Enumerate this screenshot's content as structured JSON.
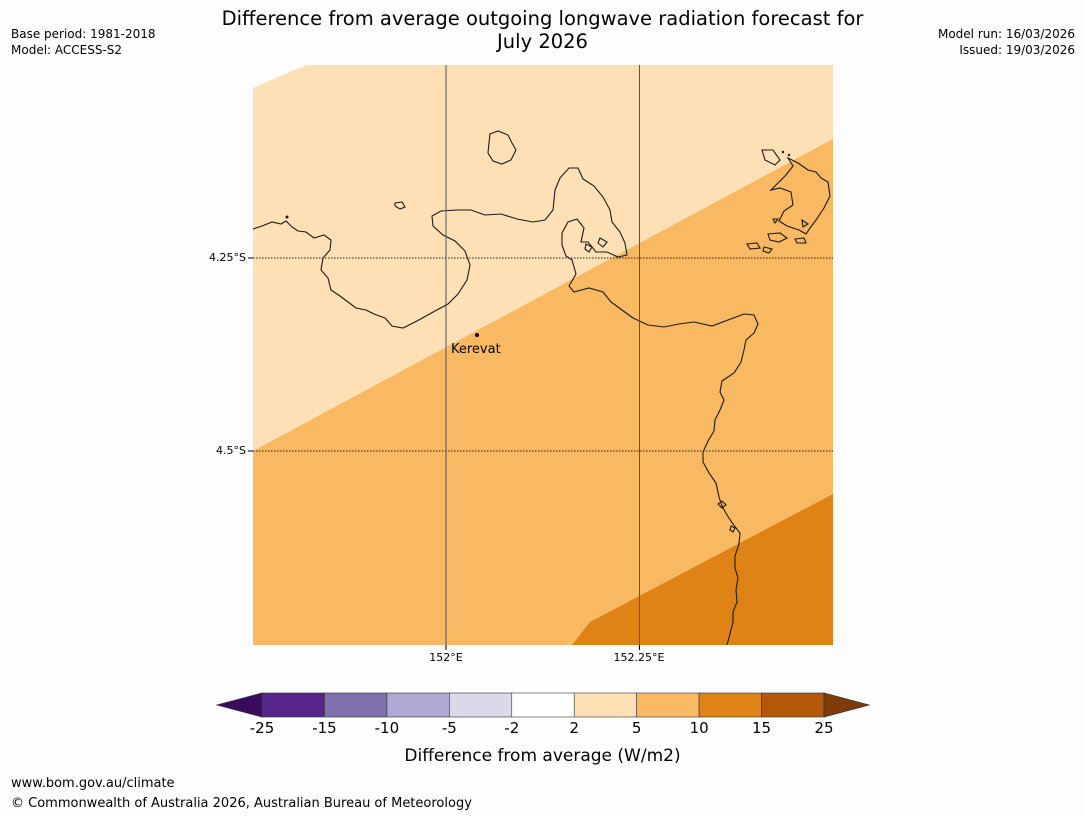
{
  "header": {
    "title_line1": "Difference from average outgoing longwave radiation forecast for",
    "title_line2": "July 2026",
    "base_period": "Base period: 1981-2018",
    "model": "Model: ACCESS-S2",
    "model_run": "Model run: 16/03/2026",
    "issued": "Issued: 19/03/2026"
  },
  "map": {
    "lat_labels": [
      "4.25°S",
      "4.5°S"
    ],
    "lon_labels": [
      "152°E",
      "152.25°E"
    ],
    "place_label": "Kerevat",
    "zones": [
      {
        "name": "2 to 5",
        "color": "#fde0b6"
      },
      {
        "name": "5 to 10",
        "color": "#f9b862"
      },
      {
        "name": "10 to 15",
        "color": "#e08316"
      }
    ]
  },
  "colorbar": {
    "ticks": [
      "-25",
      "-15",
      "-10",
      "-5",
      "-2",
      "2",
      "5",
      "10",
      "15",
      "25"
    ],
    "colors": [
      "#3b0a5c",
      "#55258a",
      "#8070ae",
      "#b0a8d2",
      "#d9d9ea",
      "#ffffff",
      "#fde0b6",
      "#f9b862",
      "#e08316",
      "#b45809",
      "#7f3b08"
    ],
    "label": "Difference from average (W/m2)"
  },
  "footer": {
    "url": "www.bom.gov.au/climate",
    "copyright": "© Commonwealth of Australia 2026, Australian Bureau of Meteorology"
  }
}
